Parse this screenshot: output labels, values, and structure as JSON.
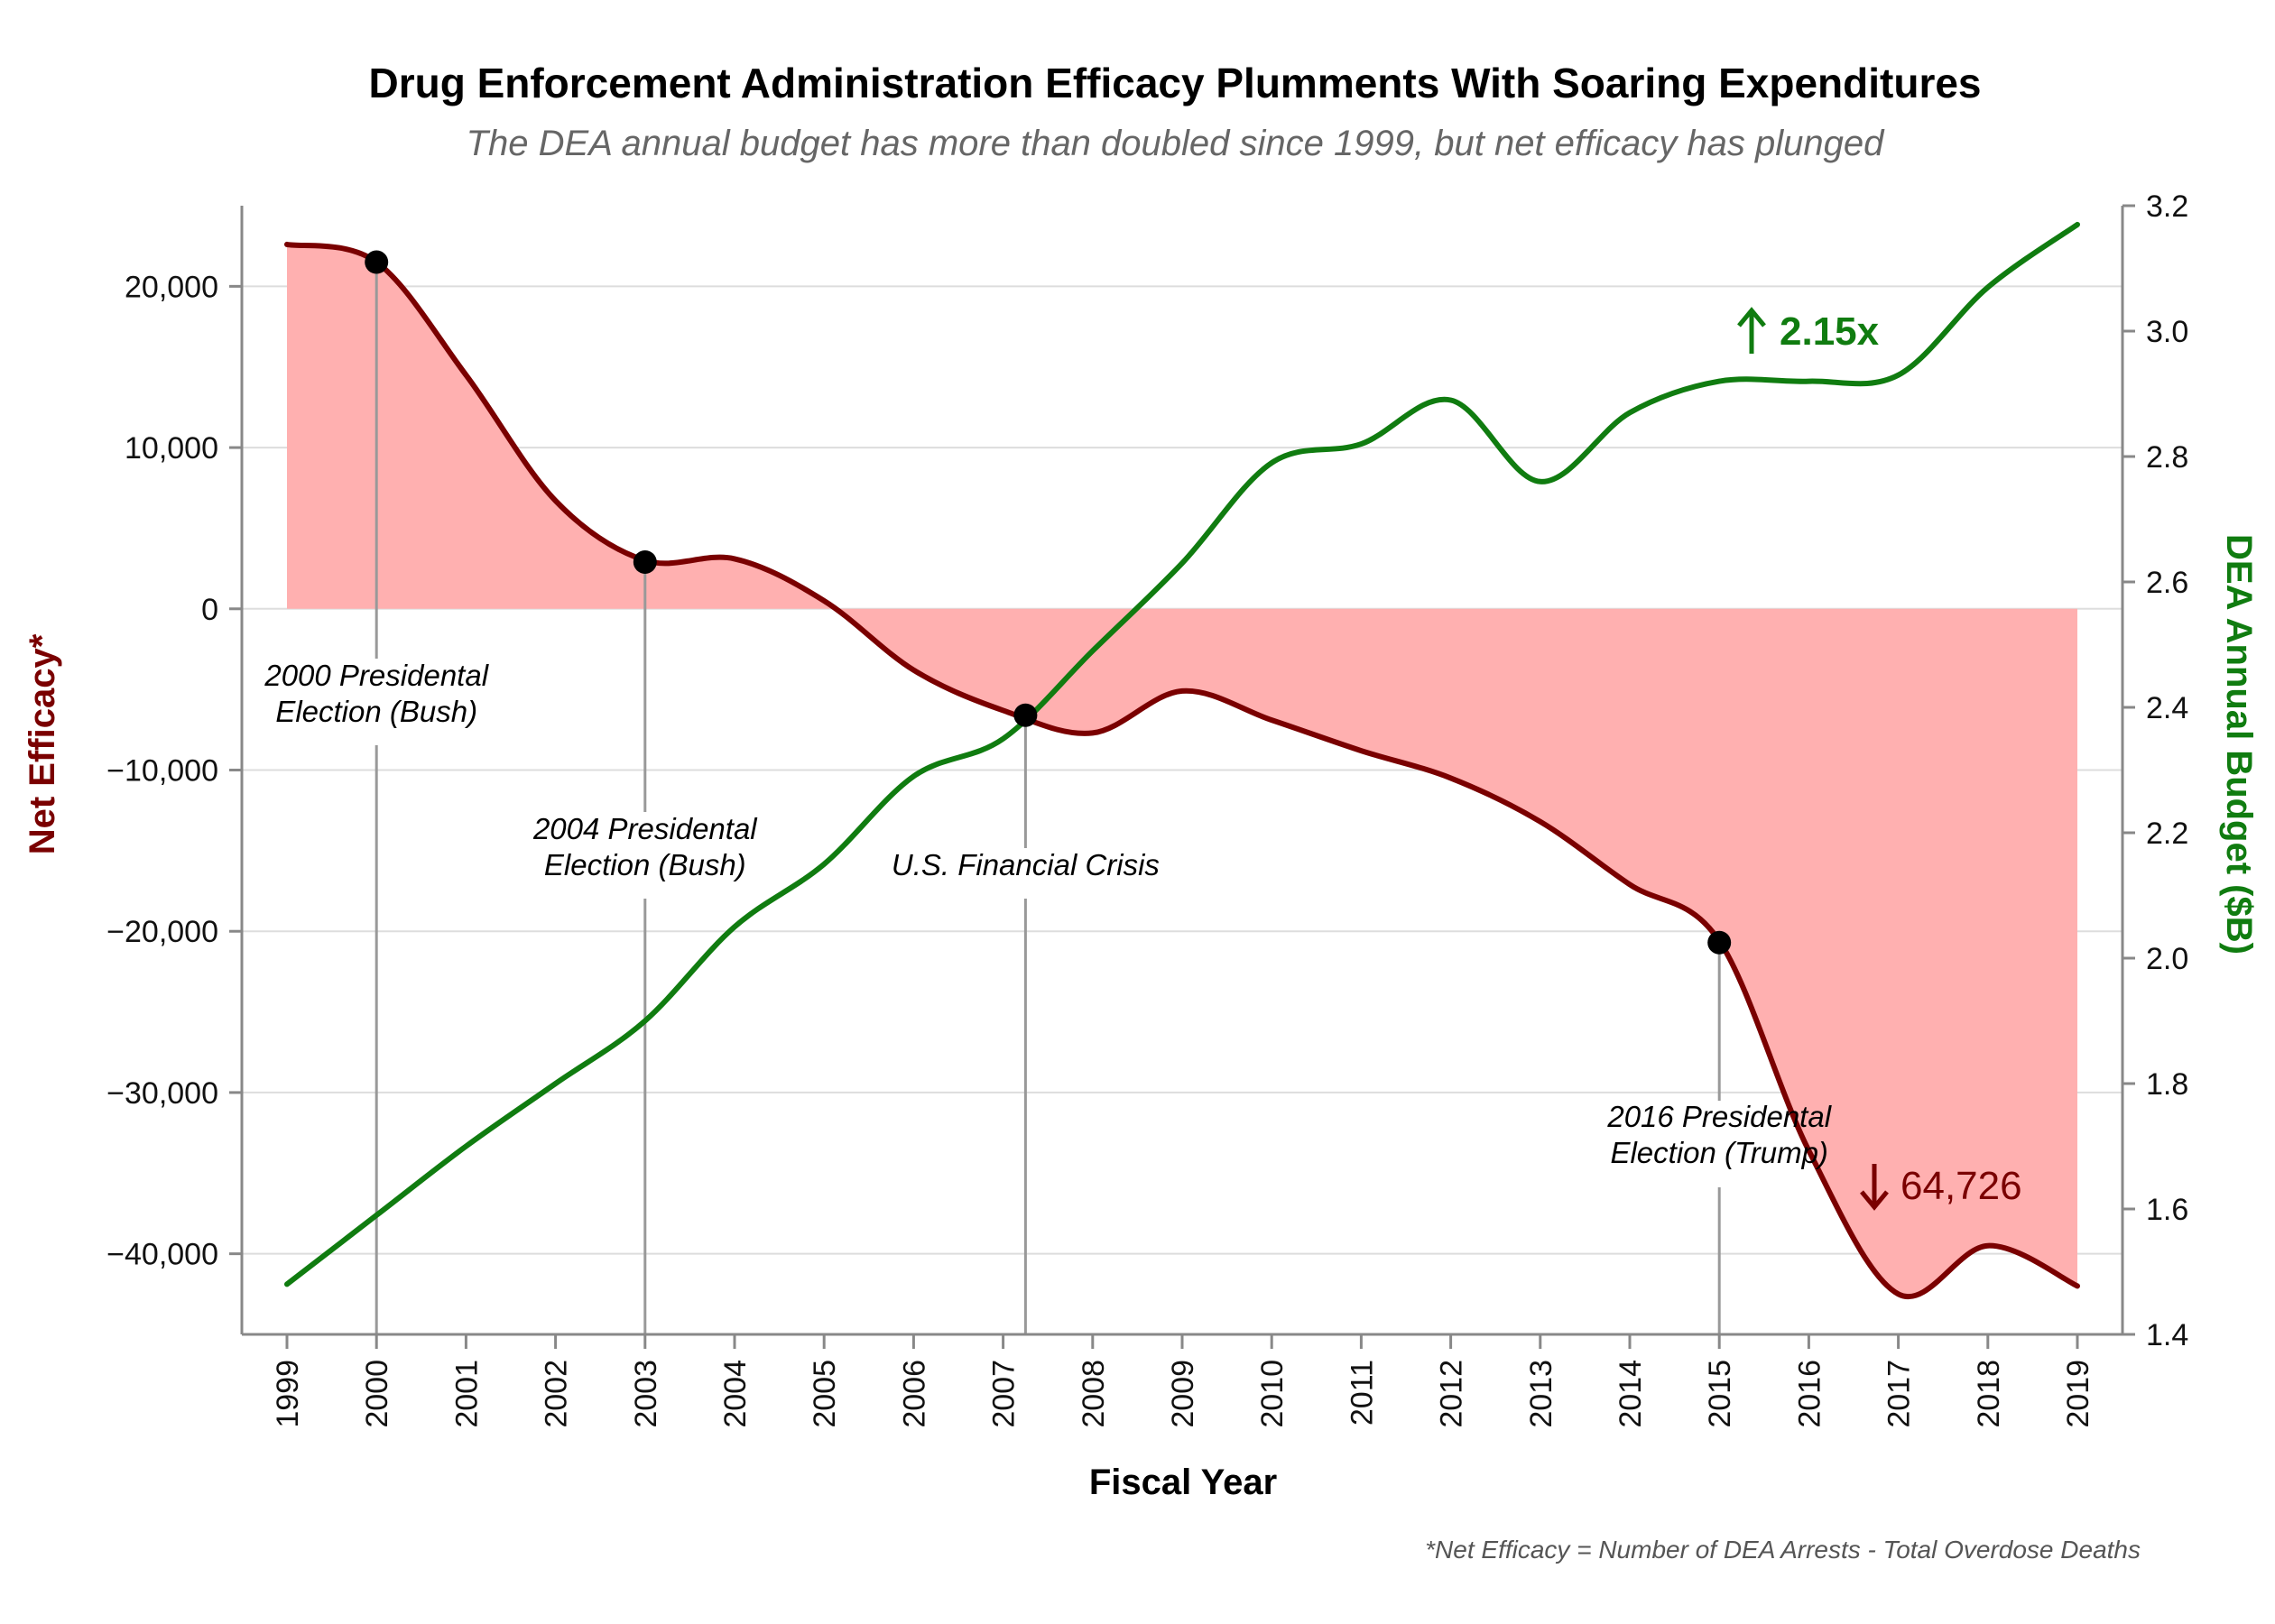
{
  "chart_data": {
    "type": "area",
    "title": "Drug Enforcement Administration Efficacy Plumments With Soaring Expenditures",
    "subtitle": "The DEA annual budget has more than doubled since 1999, but net efficacy has plunged",
    "xlabel": "Fiscal Year",
    "ylabel_left": "Net Efficacy*",
    "ylabel_right": "DEA Annual Budget ($B)",
    "footnote": "*Net Efficacy = Number of DEA Arrests - Total Overdose Deaths",
    "x": [
      1999,
      2000,
      2001,
      2002,
      2003,
      2004,
      2005,
      2006,
      2007,
      2008,
      2009,
      2010,
      2011,
      2012,
      2013,
      2014,
      2015,
      2016,
      2017,
      2018,
      2019
    ],
    "x_tick_labels": [
      "1999",
      "2000",
      "2001",
      "2002",
      "2003",
      "2004",
      "2005",
      "2006",
      "2007",
      "2008",
      "2009",
      "2010",
      "2011",
      "2012",
      "2013",
      "2014",
      "2015",
      "2016",
      "2017",
      "2018",
      "2019"
    ],
    "ylim_left": [
      -45000,
      25000
    ],
    "y_left_ticks": [
      20000,
      10000,
      0,
      -10000,
      -20000,
      -30000,
      -40000
    ],
    "y_left_tick_labels": [
      "20,000",
      "10,000",
      "0",
      "−10,000",
      "−20,000",
      "−30,000",
      "−40,000"
    ],
    "ylim_right": [
      1.4,
      3.2
    ],
    "y_right_ticks": [
      1.4,
      1.6,
      1.8,
      2.0,
      2.2,
      2.4,
      2.6,
      2.8,
      3.0,
      3.2
    ],
    "y_right_tick_labels": [
      "1.4",
      "1.6",
      "1.8",
      "2.0",
      "2.2",
      "2.4",
      "2.6",
      "2.8",
      "3.0",
      "3.2"
    ],
    "grid": true,
    "series": [
      {
        "axis": "left",
        "color": "#7a0000",
        "fill": "#ffb0b0",
        "values": [
          22600,
          21500,
          14500,
          6700,
          3000,
          3100,
          500,
          -3800,
          -6300,
          -7700,
          -5100,
          -6900,
          -8800,
          -10500,
          -13200,
          -17100,
          -20600,
          -33600,
          -42500,
          -39500,
          -42000
        ]
      },
      {
        "axis": "right",
        "color": "#107c10",
        "values": [
          1.48,
          1.59,
          1.7,
          1.8,
          1.9,
          2.05,
          2.15,
          2.29,
          2.35,
          2.49,
          2.63,
          2.79,
          2.82,
          2.89,
          2.76,
          2.87,
          2.92,
          2.92,
          2.93,
          3.07,
          3.17
        ]
      }
    ],
    "annotations": [
      {
        "x": 2000,
        "y": 21500,
        "line1": "2000 Presidental",
        "line2": "Election (Bush)"
      },
      {
        "x": 2003,
        "y": 2900,
        "line1": "2004 Presidental",
        "line2": "Election (Bush)"
      },
      {
        "x": 2007.25,
        "y": -6600,
        "line1": "U.S. Financial Crisis",
        "line2": ""
      },
      {
        "x": 2015,
        "y": -20700,
        "line1": "2016 Presidental",
        "line2": "Election (Trump)"
      }
    ],
    "callouts": {
      "budget_change": "2.15x",
      "efficacy_change": "64,726"
    }
  }
}
